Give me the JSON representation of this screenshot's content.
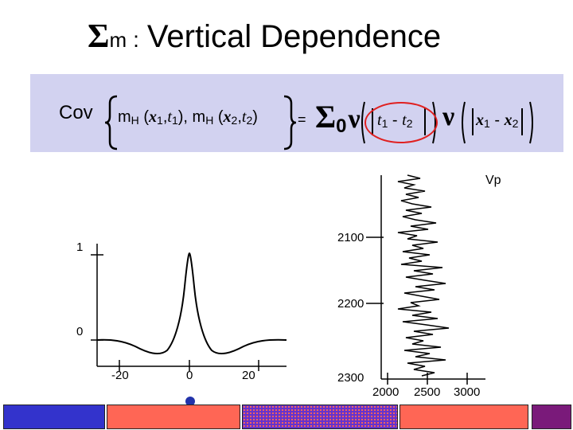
{
  "title": {
    "symbol": "Σ",
    "subscript": "m",
    "colon": ":",
    "text": "Vertical Dependence"
  },
  "formula": {
    "cov": "Cov",
    "m1": "m",
    "h1": "H",
    "x1": "x",
    "s1": "1",
    "t1": "t",
    "s1b": "1",
    "m2": "m",
    "h2": "H",
    "x2": "x",
    "s2": "2",
    "t2": "t",
    "s2b": "2",
    "eq": "=",
    "sigma": "Σ",
    "zero": "0",
    "nu1": "ν",
    "ta": "t",
    "ta_sub": "1",
    "minus1": "-",
    "tb": "t",
    "tb_sub": "2",
    "nu2": "ν",
    "xa": "x",
    "xa_sub": "1",
    "minus2": "-",
    "xb": "x",
    "xb_sub": "2"
  },
  "left_plot": {
    "y_tick_labels": [
      "1",
      "0"
    ],
    "x_tick_labels": [
      "-20",
      "0",
      "20"
    ]
  },
  "right_plot": {
    "label": "Vp",
    "y_tick_labels": [
      "2100",
      "2200",
      "2300"
    ],
    "x_tick_labels": [
      "2000",
      "2500",
      "3000"
    ]
  },
  "colors": {
    "formula_bg": "#d2d2f0",
    "highlight_circle": "#e02020",
    "marker": "#2233aa",
    "bar": [
      "#3333cc",
      "#ff6655",
      "#6633cc",
      "#ff6655",
      "#7a1a7a"
    ]
  }
}
